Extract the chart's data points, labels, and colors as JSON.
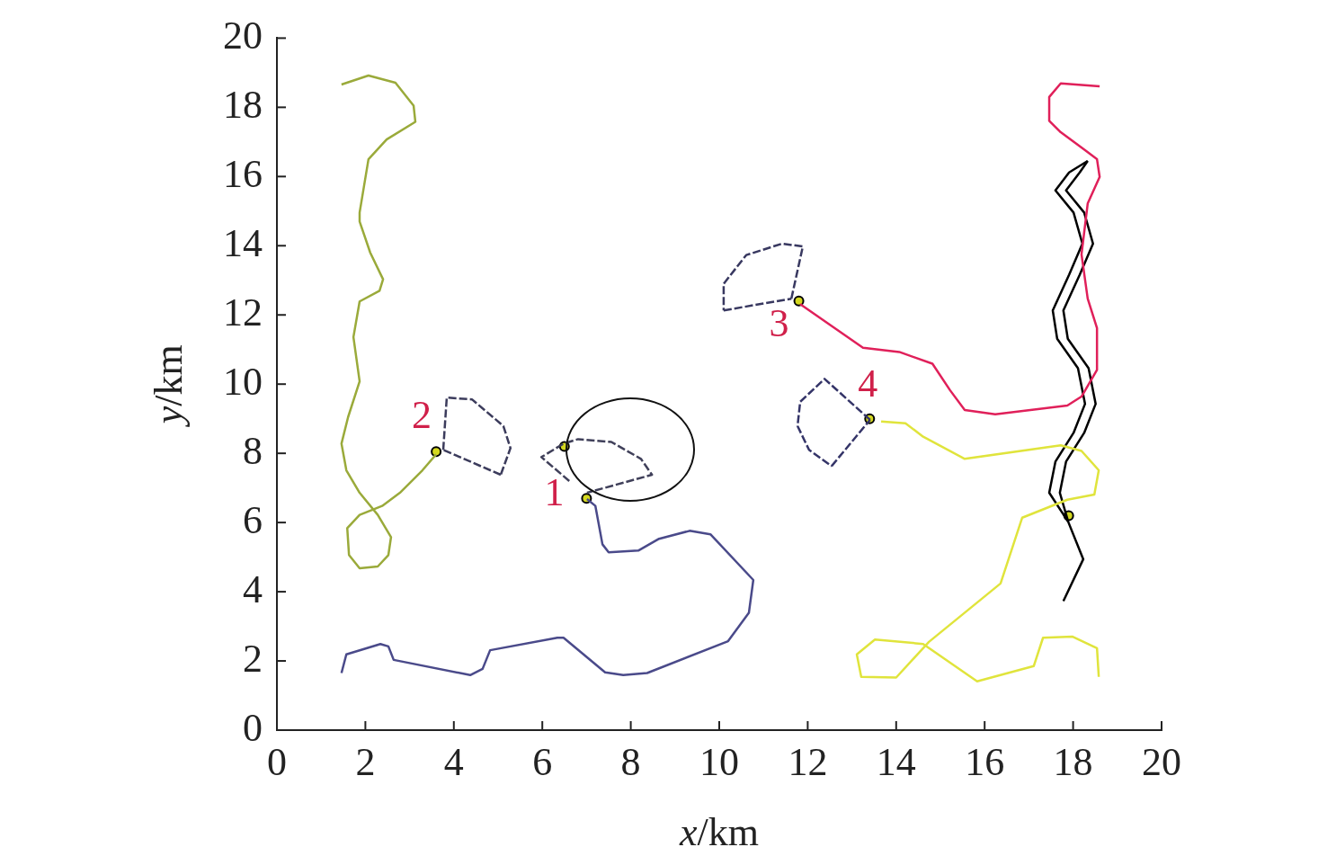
{
  "chart_data": {
    "type": "line",
    "xlabel": "x/km",
    "ylabel": "y/km",
    "xlim": [
      0,
      20
    ],
    "ylim": [
      0,
      20
    ],
    "xticks": [
      0,
      2,
      4,
      6,
      8,
      10,
      12,
      14,
      16,
      18,
      20
    ],
    "yticks": [
      0,
      2,
      4,
      6,
      8,
      10,
      12,
      14,
      16,
      18,
      20
    ],
    "legend": false,
    "marker": "none",
    "line_style": "solid",
    "annotations": [
      {
        "text": "1",
        "x": 7.0,
        "y": 6.7
      },
      {
        "text": "2",
        "x": 3.6,
        "y": 8.05
      },
      {
        "text": "3",
        "x": 11.8,
        "y": 12.4
      },
      {
        "text": "4",
        "x": 13.4,
        "y": 9.0
      }
    ],
    "series": [
      {
        "color": "#3c3c5c",
        "line_style": "dashed",
        "x": [
          3.76,
          3.84,
          4.41,
          5.12,
          5.28,
          5.06
        ],
        "values": [
          8.1,
          9.61,
          9.56,
          8.79,
          8.15,
          7.38
        ]
      },
      {
        "color": "#3c3c5c",
        "line_style": "dashed",
        "x": [
          5.06,
          3.76
        ],
        "values": [
          7.38,
          8.1
        ]
      },
      {
        "color": "#40405a",
        "line_style": "dashed",
        "x": [
          6.61,
          5.98,
          6.48,
          6.81,
          7.56,
          8.23,
          8.48,
          7.01
        ],
        "values": [
          7.2,
          7.89,
          8.28,
          8.41,
          8.33,
          7.84,
          7.38,
          6.86
        ]
      },
      {
        "color": "#383860",
        "line_style": "dashed",
        "x": [
          11.63,
          11.89,
          11.42,
          10.61,
          10.1,
          10.1
        ],
        "values": [
          12.47,
          13.98,
          14.06,
          13.73,
          12.9,
          12.13
        ]
      },
      {
        "color": "#383860",
        "line_style": "dashed",
        "x": [
          10.1,
          11.63
        ],
        "values": [
          12.13,
          12.47
        ]
      },
      {
        "color": "#343468",
        "line_style": "dashed",
        "x": [
          13.41,
          12.38,
          11.83,
          11.77,
          12.03,
          12.54
        ],
        "values": [
          8.97,
          10.15,
          9.49,
          8.79,
          8.1,
          7.63
        ]
      },
      {
        "color": "#343468",
        "line_style": "dashed",
        "x": [
          12.54,
          13.41
        ],
        "values": [
          7.63,
          8.97
        ]
      },
      {
        "color": "#9aaa3a",
        "x": [
          1.46,
          2.07,
          2.68,
          3.09,
          3.13,
          2.48,
          2.07,
          1.87,
          1.87,
          2.11,
          2.4,
          2.32,
          1.87,
          1.73,
          1.87,
          1.61,
          1.46,
          1.57,
          1.87,
          2.28,
          2.58,
          2.52,
          2.28,
          1.87,
          1.63,
          1.59,
          1.87,
          2.38,
          2.78,
          3.29,
          3.6
        ],
        "values": [
          18.66,
          18.92,
          18.71,
          18.05,
          17.58,
          17.07,
          16.5,
          14.96,
          14.7,
          13.8,
          13.03,
          12.7,
          12.39,
          11.36,
          10.08,
          9.05,
          8.28,
          7.51,
          6.86,
          6.22,
          5.58,
          5.06,
          4.73,
          4.68,
          5.06,
          5.84,
          6.22,
          6.48,
          6.86,
          7.51,
          7.97
        ]
      },
      {
        "color": "#4a4a8a",
        "x": [
          1.46,
          1.57,
          2.34,
          2.52,
          2.64,
          4.37,
          4.65,
          4.82,
          6.34,
          6.48,
          7.42,
          7.83,
          8.37,
          10.2,
          10.67,
          10.77,
          9.8,
          9.33,
          8.64,
          8.17,
          7.5,
          7.36,
          7.2,
          7.01
        ],
        "values": [
          1.65,
          2.19,
          2.49,
          2.42,
          2.03,
          1.59,
          1.77,
          2.31,
          2.67,
          2.67,
          1.67,
          1.59,
          1.65,
          2.57,
          3.39,
          4.34,
          5.66,
          5.76,
          5.53,
          5.19,
          5.14,
          5.37,
          6.48,
          6.68
        ]
      },
      {
        "color": "#e0205a",
        "x": [
          11.83,
          13.25,
          14.07,
          14.82,
          15.22,
          15.55,
          16.24,
          17.87,
          18.19,
          18.54,
          18.54,
          18.33,
          18.19,
          18.33,
          18.6,
          18.54,
          18.27,
          17.72,
          17.46,
          17.46,
          17.72,
          18.6
        ],
        "values": [
          12.31,
          11.05,
          10.93,
          10.59,
          9.82,
          9.25,
          9.13,
          9.38,
          9.64,
          10.41,
          11.62,
          12.47,
          13.75,
          15.22,
          15.99,
          16.5,
          16.76,
          17.28,
          17.61,
          18.3,
          18.69,
          18.61
        ]
      },
      {
        "color": "#e0e43c",
        "x": [
          13.66,
          14.21,
          14.61,
          15.55,
          17.72,
          18.19,
          18.58,
          18.48,
          17.87,
          16.85,
          16.36,
          14.74,
          14.0,
          13.21,
          13.11,
          13.52,
          14.61,
          15.83,
          17.11,
          17.32,
          17.99,
          18.54,
          18.58
        ],
        "values": [
          8.92,
          8.87,
          8.48,
          7.84,
          8.23,
          8.07,
          7.51,
          6.81,
          6.66,
          6.14,
          4.24,
          2.55,
          1.52,
          1.54,
          2.19,
          2.62,
          2.49,
          1.41,
          1.85,
          2.67,
          2.7,
          2.37,
          1.54
        ]
      },
      {
        "color": "#000000",
        "x": [
          17.78,
          18.23,
          17.89,
          17.46,
          17.6,
          18.01,
          18.27,
          18.11,
          17.64,
          17.54,
          17.91,
          18.21,
          18.01,
          17.6,
          17.91,
          18.33
        ],
        "values": [
          3.73,
          4.94,
          6.02,
          6.86,
          7.76,
          8.59,
          9.43,
          10.46,
          11.31,
          12.13,
          13.16,
          14.06,
          14.96,
          15.6,
          16.12,
          16.45
        ]
      },
      {
        "color": "#000000",
        "x": [
          17.89,
          17.7,
          17.84,
          18.25,
          18.51,
          18.35,
          17.88,
          17.78,
          18.15,
          18.45,
          18.25,
          17.84,
          18.15,
          18.33
        ],
        "values": [
          6.02,
          6.86,
          7.76,
          8.59,
          9.43,
          10.46,
          11.31,
          12.13,
          13.16,
          14.06,
          14.96,
          15.6,
          16.12,
          16.45
        ]
      },
      {
        "type": "scatter",
        "marker": "circle",
        "color": "#d4d820",
        "x": [
          7.0,
          3.6,
          11.8,
          13.4,
          6.5,
          17.9
        ],
        "values": [
          6.7,
          8.05,
          12.4,
          9.0,
          8.2,
          6.2
        ]
      }
    ]
  }
}
